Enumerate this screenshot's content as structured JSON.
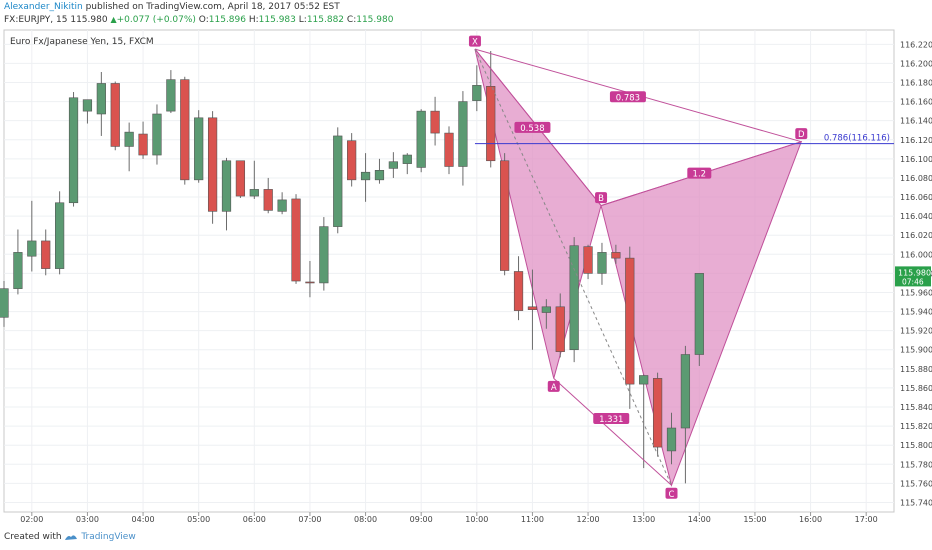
{
  "header": {
    "author": "Alexander_Nikitin",
    "published_text": "published on TradingView.com, April 18, 2017 05:52 EST",
    "symbol": "FX:EURJPY, 15",
    "last": "115.980",
    "change": "+0.077 (+0.07%)",
    "open_label": "O:",
    "open": "115.896",
    "high_label": "H:",
    "high": "115.983",
    "low_label": "L:",
    "low": "115.882",
    "close_label": "C:",
    "close": "115.980"
  },
  "footer": {
    "created_with": "Created with",
    "brand": "TradingView"
  },
  "colors": {
    "up": "#5b9a72",
    "down": "#d9534f",
    "pattern": "#e091c4",
    "pattern_stroke": "#c0509a",
    "fib_line": "#3a3ad0",
    "price_tag": "#2aa04a"
  },
  "chart_data": {
    "type": "candlestick",
    "title": "Euro Fx/Japanese Yen, 15, FXCM",
    "ylim": [
      115.73,
      116.235
    ],
    "xlim": [
      "01:30",
      "17:30"
    ],
    "y_ticks": [
      "116.220",
      "116.200",
      "116.180",
      "116.160",
      "116.140",
      "116.120",
      "116.100",
      "116.080",
      "116.060",
      "116.040",
      "116.020",
      "116.000",
      "115.980",
      "115.960",
      "115.940",
      "115.920",
      "115.900",
      "115.880",
      "115.860",
      "115.840",
      "115.820",
      "115.800",
      "115.780",
      "115.760",
      "115.740"
    ],
    "x_ticks": [
      "02:00",
      "03:00",
      "04:00",
      "05:00",
      "06:00",
      "07:00",
      "08:00",
      "09:00",
      "10:00",
      "11:00",
      "12:00",
      "13:00",
      "14:00",
      "15:00",
      "16:00",
      "17:00"
    ],
    "candles": [
      {
        "t": "01:30",
        "o": 115.934,
        "h": 115.972,
        "l": 115.924,
        "c": 115.964
      },
      {
        "t": "01:45",
        "o": 115.964,
        "h": 116.026,
        "l": 115.958,
        "c": 116.002
      },
      {
        "t": "02:00",
        "o": 115.998,
        "h": 116.056,
        "l": 115.982,
        "c": 116.014
      },
      {
        "t": "02:15",
        "o": 116.014,
        "h": 116.026,
        "l": 115.978,
        "c": 115.985
      },
      {
        "t": "02:30",
        "o": 115.985,
        "h": 116.066,
        "l": 115.979,
        "c": 116.054
      },
      {
        "t": "02:45",
        "o": 116.054,
        "h": 116.17,
        "l": 116.05,
        "c": 116.164
      },
      {
        "t": "03:00",
        "o": 116.15,
        "h": 116.162,
        "l": 116.137,
        "c": 116.162
      },
      {
        "t": "03:15",
        "o": 116.147,
        "h": 116.191,
        "l": 116.124,
        "c": 116.179
      },
      {
        "t": "03:30",
        "o": 116.179,
        "h": 116.181,
        "l": 116.109,
        "c": 116.113
      },
      {
        "t": "03:45",
        "o": 116.113,
        "h": 116.138,
        "l": 116.087,
        "c": 116.128
      },
      {
        "t": "04:00",
        "o": 116.126,
        "h": 116.139,
        "l": 116.1,
        "c": 116.104
      },
      {
        "t": "04:15",
        "o": 116.104,
        "h": 116.157,
        "l": 116.094,
        "c": 116.147
      },
      {
        "t": "04:30",
        "o": 116.15,
        "h": 116.193,
        "l": 116.148,
        "c": 116.183
      },
      {
        "t": "04:45",
        "o": 116.183,
        "h": 116.186,
        "l": 116.073,
        "c": 116.078
      },
      {
        "t": "05:00",
        "o": 116.078,
        "h": 116.151,
        "l": 116.075,
        "c": 116.143
      },
      {
        "t": "05:15",
        "o": 116.143,
        "h": 116.15,
        "l": 116.032,
        "c": 116.045
      },
      {
        "t": "05:30",
        "o": 116.045,
        "h": 116.101,
        "l": 116.025,
        "c": 116.098
      },
      {
        "t": "05:45",
        "o": 116.098,
        "h": 116.098,
        "l": 116.059,
        "c": 116.061
      },
      {
        "t": "06:00",
        "o": 116.061,
        "h": 116.098,
        "l": 116.058,
        "c": 116.068
      },
      {
        "t": "06:15",
        "o": 116.068,
        "h": 116.08,
        "l": 116.043,
        "c": 116.046
      },
      {
        "t": "06:30",
        "o": 116.045,
        "h": 116.065,
        "l": 116.042,
        "c": 116.057
      },
      {
        "t": "06:45",
        "o": 116.058,
        "h": 116.063,
        "l": 115.969,
        "c": 115.972
      },
      {
        "t": "07:00",
        "o": 115.971,
        "h": 115.993,
        "l": 115.955,
        "c": 115.97
      },
      {
        "t": "07:15",
        "o": 115.97,
        "h": 116.039,
        "l": 115.962,
        "c": 116.029
      },
      {
        "t": "07:30",
        "o": 116.029,
        "h": 116.133,
        "l": 116.022,
        "c": 116.124
      },
      {
        "t": "07:45",
        "o": 116.119,
        "h": 116.127,
        "l": 116.071,
        "c": 116.078
      },
      {
        "t": "08:00",
        "o": 116.078,
        "h": 116.106,
        "l": 116.055,
        "c": 116.086
      },
      {
        "t": "08:15",
        "o": 116.078,
        "h": 116.1,
        "l": 116.074,
        "c": 116.088
      },
      {
        "t": "08:30",
        "o": 116.09,
        "h": 116.107,
        "l": 116.08,
        "c": 116.097
      },
      {
        "t": "08:45",
        "o": 116.095,
        "h": 116.106,
        "l": 116.084,
        "c": 116.104
      },
      {
        "t": "09:00",
        "o": 116.091,
        "h": 116.152,
        "l": 116.086,
        "c": 116.15
      },
      {
        "t": "09:15",
        "o": 116.15,
        "h": 116.165,
        "l": 116.114,
        "c": 116.127
      },
      {
        "t": "09:30",
        "o": 116.127,
        "h": 116.134,
        "l": 116.084,
        "c": 116.092
      },
      {
        "t": "09:45",
        "o": 116.092,
        "h": 116.171,
        "l": 116.072,
        "c": 116.16
      },
      {
        "t": "10:00",
        "o": 116.161,
        "h": 116.198,
        "l": 116.15,
        "c": 116.177
      },
      {
        "t": "10:15",
        "o": 116.176,
        "h": 116.213,
        "l": 116.091,
        "c": 116.098
      },
      {
        "t": "10:30",
        "o": 116.098,
        "h": 116.106,
        "l": 115.978,
        "c": 115.983
      },
      {
        "t": "10:45",
        "o": 115.982,
        "h": 115.998,
        "l": 115.931,
        "c": 115.941
      },
      {
        "t": "11:00",
        "o": 115.945,
        "h": 115.984,
        "l": 115.9,
        "c": 115.942
      },
      {
        "t": "11:15",
        "o": 115.939,
        "h": 115.953,
        "l": 115.922,
        "c": 115.945
      },
      {
        "t": "11:30",
        "o": 115.945,
        "h": 115.959,
        "l": 115.892,
        "c": 115.898
      },
      {
        "t": "11:45",
        "o": 115.9,
        "h": 116.018,
        "l": 115.887,
        "c": 116.009
      },
      {
        "t": "12:00",
        "o": 116.008,
        "h": 116.01,
        "l": 115.974,
        "c": 115.98
      },
      {
        "t": "12:15",
        "o": 115.98,
        "h": 116.012,
        "l": 115.968,
        "c": 116.002
      },
      {
        "t": "12:30",
        "o": 116.002,
        "h": 116.01,
        "l": 115.99,
        "c": 115.996
      },
      {
        "t": "12:45",
        "o": 115.996,
        "h": 116.008,
        "l": 115.838,
        "c": 115.864
      },
      {
        "t": "13:00",
        "o": 115.864,
        "h": 115.874,
        "l": 115.776,
        "c": 115.873
      },
      {
        "t": "13:15",
        "o": 115.87,
        "h": 115.876,
        "l": 115.788,
        "c": 115.798
      },
      {
        "t": "13:30",
        "o": 115.794,
        "h": 115.834,
        "l": 115.78,
        "c": 115.818
      },
      {
        "t": "13:45",
        "o": 115.818,
        "h": 115.904,
        "l": 115.76,
        "c": 115.895
      },
      {
        "t": "14:00",
        "o": 115.895,
        "h": 115.98,
        "l": 115.883,
        "c": 115.98
      }
    ],
    "pattern": {
      "points": [
        {
          "label": "X",
          "t": "09:58",
          "v": 116.215
        },
        {
          "label": "A",
          "t": "11:23",
          "v": 115.87
        },
        {
          "label": "B",
          "t": "12:14",
          "v": 116.051
        },
        {
          "label": "C",
          "t": "13:30",
          "v": 115.758
        },
        {
          "label": "D",
          "t": "15:50",
          "v": 116.118
        }
      ],
      "ratios": [
        {
          "label": "0.538",
          "t": "11:00",
          "v": 116.133
        },
        {
          "label": "0.783",
          "t": "12:43",
          "v": 116.165
        },
        {
          "label": "1.2",
          "t": "14:00",
          "v": 116.085
        },
        {
          "label": "1.331",
          "t": "12:25",
          "v": 115.828
        }
      ],
      "fib_level": {
        "label": "0.786(116.116)",
        "value": 116.116,
        "from": "09:58",
        "to": "17:30"
      }
    },
    "price_tag": {
      "value": "115.980",
      "time": "07:46"
    }
  }
}
